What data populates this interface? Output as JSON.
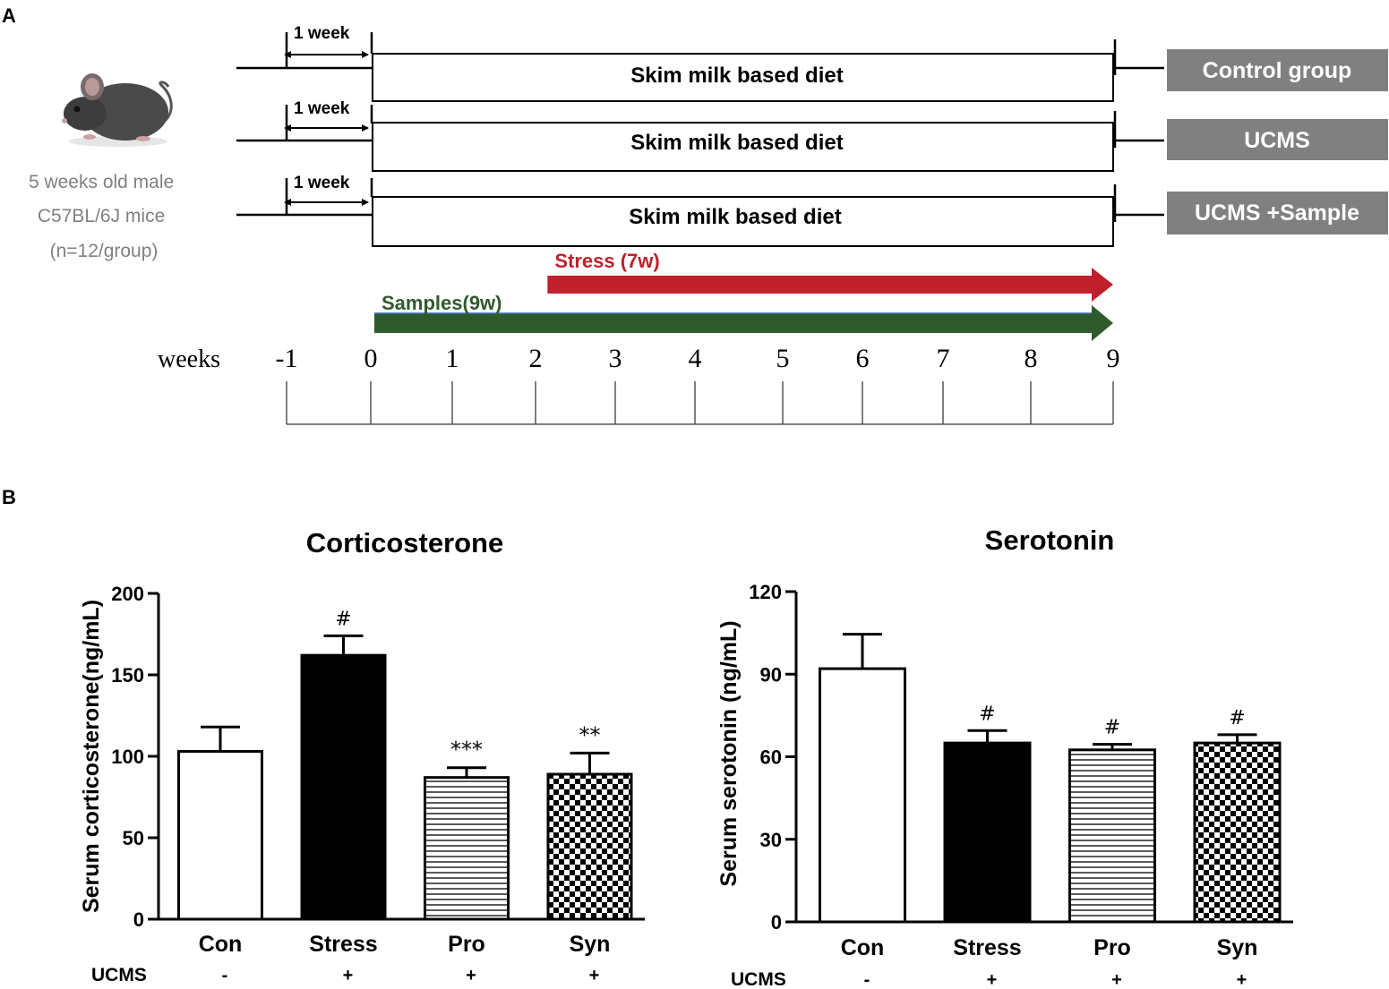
{
  "panel_a": {
    "label": "A",
    "mouse": {
      "icon": "mouse-icon",
      "caption_lines": [
        "5 weeks old male",
        "C57BL/6J mice",
        "(n=12/group)"
      ]
    },
    "groups": [
      {
        "week_label": "1 week",
        "diet": "Skim milk based diet",
        "tag": "Control group"
      },
      {
        "week_label": "1 week",
        "diet": "Skim milk based diet",
        "tag": "UCMS"
      },
      {
        "week_label": "1 week",
        "diet": "Skim milk based diet",
        "tag": "UCMS +Sample"
      }
    ],
    "stress_arrow": {
      "label": "Stress (7w)",
      "start_week": 2.15,
      "end_week": 9,
      "color": "#c0202b"
    },
    "samples_arrow": {
      "label": "Samples(9w)",
      "start_week": 0,
      "end_week": 9,
      "color": "#2f5a2c"
    },
    "timeline": {
      "axis_label": "weeks",
      "ticks": [
        "-1",
        "0",
        "1",
        "2",
        "3",
        "4",
        "5",
        "6",
        "7",
        "8",
        "9"
      ]
    },
    "colors": {
      "tag_bg": "#808080",
      "tag_text": "#ffffff",
      "caption": "#808080"
    }
  },
  "panel_b": {
    "label": "B"
  },
  "chart_data": [
    {
      "type": "bar",
      "title": "Corticosterone",
      "ylabel": "Serum corticosterone(ng/mL)",
      "ylim": [
        0,
        200
      ],
      "yticks": [
        0,
        50,
        100,
        150,
        200
      ],
      "categories": [
        "Con",
        "Stress",
        "Pro",
        "Syn"
      ],
      "values": [
        103,
        162,
        87,
        89
      ],
      "errors": [
        15,
        12,
        6,
        13
      ],
      "fills": [
        "white",
        "black",
        "hstripes",
        "checker"
      ],
      "annotations": [
        "",
        "#",
        "***",
        "**"
      ],
      "ucms_label": "UCMS",
      "ucms_row": [
        "-",
        "+",
        "+",
        "+"
      ]
    },
    {
      "type": "bar",
      "title": "Serotonin",
      "ylabel": "Serum serotonin (ng/mL)",
      "ylim": [
        0,
        120
      ],
      "yticks": [
        0,
        30,
        60,
        90,
        120
      ],
      "categories": [
        "Con",
        "Stress",
        "Pro",
        "Syn"
      ],
      "values": [
        92,
        65,
        62.5,
        65
      ],
      "errors": [
        12.5,
        4.5,
        2,
        3
      ],
      "fills": [
        "white",
        "black",
        "hstripes",
        "checker"
      ],
      "annotations": [
        "",
        "#",
        "#",
        "#"
      ],
      "ucms_label": "UCMS",
      "ucms_row": [
        "-",
        "+",
        "+",
        "+"
      ]
    }
  ]
}
